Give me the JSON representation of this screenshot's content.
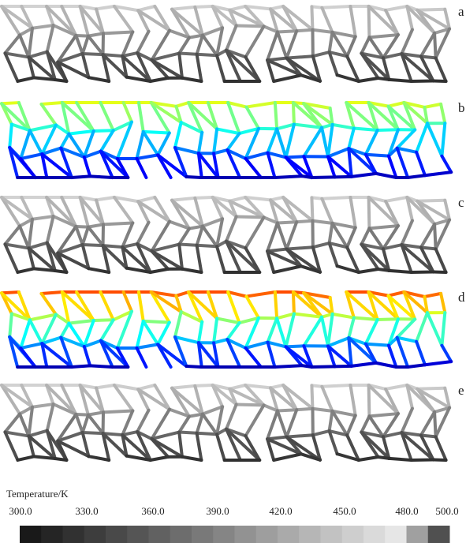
{
  "panels": [
    {
      "label": "a"
    },
    {
      "label": "b"
    },
    {
      "label": "c"
    },
    {
      "label": "d"
    },
    {
      "label": "e"
    }
  ],
  "colorbar": {
    "title": "Temperature/K",
    "ticks": [
      "300.0",
      "330.0",
      "360.0",
      "390.0",
      "420.0",
      "450.0",
      "480.0",
      "500.0"
    ]
  }
}
